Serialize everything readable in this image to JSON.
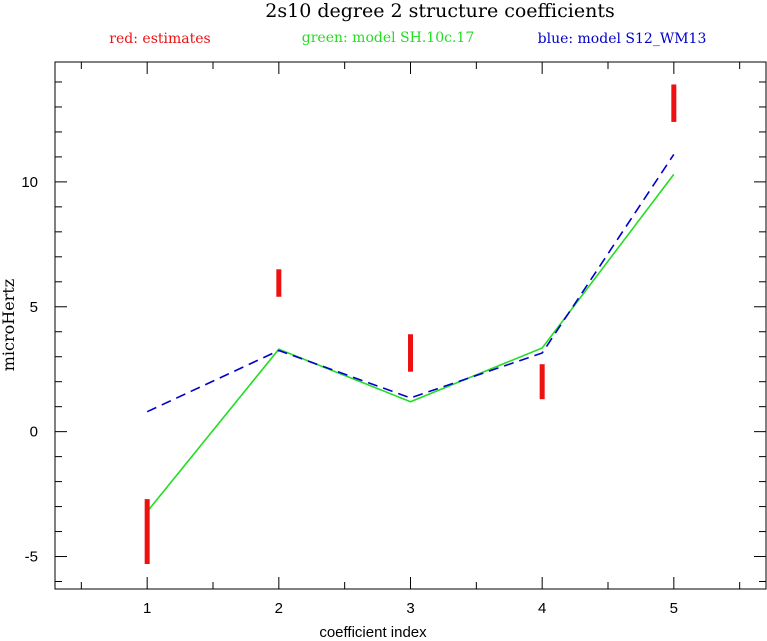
{
  "chart_data": {
    "type": "line",
    "title": "2s10 degree 2 structure coefficients",
    "xlabel": "coefficient index",
    "ylabel": "microHertz",
    "xlim": [
      0.3,
      5.7
    ],
    "ylim": [
      -6.3,
      14.8
    ],
    "x_ticks": [
      "1",
      "2",
      "3",
      "4",
      "5"
    ],
    "y_ticks": [
      "-5",
      "0",
      "5",
      "10"
    ],
    "legend": [
      {
        "text": "red: estimates",
        "color": "#ee1111"
      },
      {
        "text": "green: model SH.10c.17",
        "color": "#22dd22"
      },
      {
        "text": "blue: model S12_WM13",
        "color": "#0000cc"
      }
    ],
    "estimates": {
      "name": "estimates",
      "color": "#ee1111",
      "x": [
        1,
        2,
        3,
        4,
        5
      ],
      "low": [
        -5.3,
        5.4,
        2.4,
        1.3,
        12.4
      ],
      "high": [
        -2.7,
        6.5,
        3.9,
        2.7,
        13.9
      ]
    },
    "series": [
      {
        "name": "model SH.10c.17",
        "color": "#22dd22",
        "dash": "solid",
        "x": [
          1,
          2,
          3,
          4,
          5
        ],
        "values": [
          -3.2,
          3.3,
          1.2,
          3.35,
          10.3
        ]
      },
      {
        "name": "model S12_WM13",
        "color": "#0000cc",
        "dash": "dashed",
        "x": [
          1,
          2,
          3,
          4,
          5
        ],
        "values": [
          0.8,
          3.25,
          1.35,
          3.15,
          11.1
        ]
      }
    ]
  }
}
